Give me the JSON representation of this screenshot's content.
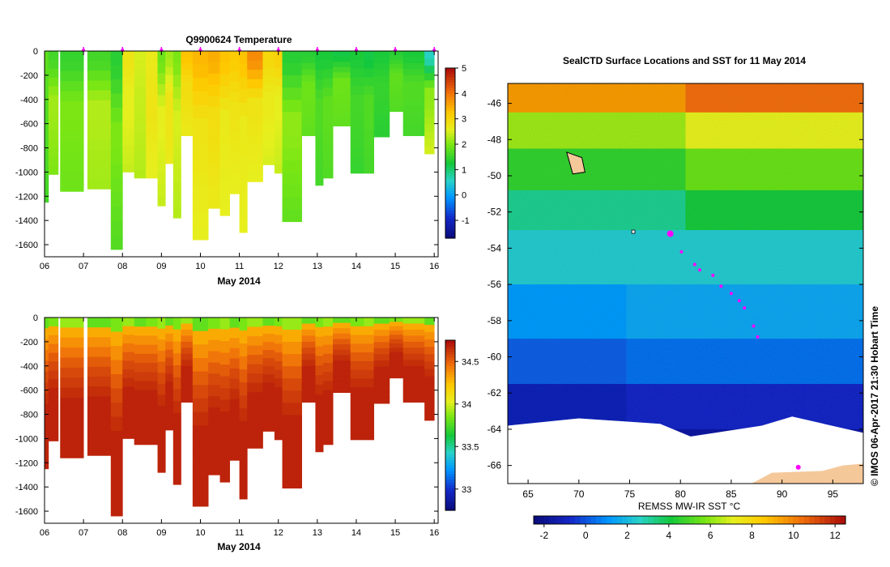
{
  "chart_data": [
    {
      "type": "heatmap",
      "panel": "temperature-section",
      "title": "Q9900624  Temperature",
      "xlabel": "May 2014",
      "ylabel": "",
      "x_ticks": [
        "06",
        "07",
        "08",
        "09",
        "10",
        "11",
        "12",
        "13",
        "14",
        "15",
        "16"
      ],
      "y_ticks": [
        "0",
        "-200",
        "-400",
        "-600",
        "-800",
        "-1000",
        "-1200",
        "-1400",
        "-1600"
      ],
      "xlim": [
        6.0,
        16.1
      ],
      "ylim": [
        -1700,
        0
      ],
      "colorbar": {
        "min": -1.7,
        "max": 5.0,
        "ticks": [
          "-1",
          "0",
          "1",
          "2",
          "3",
          "4",
          "5"
        ]
      },
      "profile_marker_days": [
        7.0,
        8.0,
        9.0,
        10.0,
        11.0,
        12.0,
        13.0,
        14.0,
        15.0,
        16.0
      ],
      "profiles": [
        {
          "day": 6.0,
          "width": 0.1,
          "depth": 1250,
          "surf": 1.8,
          "mid": 1.7,
          "deep": 1.6
        },
        {
          "day": 6.1,
          "width": 0.25,
          "depth": 1020,
          "surf": 1.6,
          "mid": 2.2,
          "deep": 2.0
        },
        {
          "day": 6.4,
          "width": 0.6,
          "depth": 1160,
          "surf": 1.5,
          "mid": 2.0,
          "deep": 1.9
        },
        {
          "day": 7.1,
          "width": 0.65,
          "depth": 1140,
          "surf": 1.6,
          "mid": 2.3,
          "deep": 2.2
        },
        {
          "day": 7.7,
          "width": 0.3,
          "depth": 1640,
          "surf": 1.4,
          "mid": 2.0,
          "deep": 1.7
        },
        {
          "day": 8.0,
          "width": 0.3,
          "depth": 1000,
          "surf": 2.8,
          "mid": 2.6,
          "deep": 2.4
        },
        {
          "day": 8.3,
          "width": 0.3,
          "depth": 1050,
          "surf": 2.5,
          "mid": 2.4,
          "deep": 2.3
        },
        {
          "day": 8.6,
          "width": 0.3,
          "depth": 1050,
          "surf": 2.7,
          "mid": 2.8,
          "deep": 2.6
        },
        {
          "day": 8.9,
          "width": 0.2,
          "depth": 1280,
          "surf": 1.9,
          "mid": 2.6,
          "deep": 2.4
        },
        {
          "day": 9.1,
          "width": 0.25,
          "depth": 930,
          "surf": 2.2,
          "mid": 2.8,
          "deep": 2.7
        },
        {
          "day": 9.3,
          "width": 0.2,
          "depth": 1380,
          "surf": 2.0,
          "mid": 2.5,
          "deep": 2.3
        },
        {
          "day": 9.5,
          "width": 0.3,
          "depth": 700,
          "surf": 3.3,
          "mid": 2.9,
          "deep": 2.7
        },
        {
          "day": 9.8,
          "width": 0.4,
          "depth": 1560,
          "surf": 3.4,
          "mid": 2.8,
          "deep": 2.6
        },
        {
          "day": 10.2,
          "width": 0.3,
          "depth": 1300,
          "surf": 3.5,
          "mid": 2.9,
          "deep": 2.7
        },
        {
          "day": 10.5,
          "width": 0.25,
          "depth": 1360,
          "surf": 3.3,
          "mid": 2.7,
          "deep": 2.6
        },
        {
          "day": 10.75,
          "width": 0.25,
          "depth": 1180,
          "surf": 3.2,
          "mid": 2.8,
          "deep": 2.6
        },
        {
          "day": 11.0,
          "width": 0.2,
          "depth": 1500,
          "surf": 3.3,
          "mid": 2.7,
          "deep": 2.6
        },
        {
          "day": 11.2,
          "width": 0.4,
          "depth": 1080,
          "surf": 3.8,
          "mid": 2.8,
          "deep": 2.6
        },
        {
          "day": 11.6,
          "width": 0.3,
          "depth": 940,
          "surf": 3.0,
          "mid": 2.7,
          "deep": 2.5
        },
        {
          "day": 11.9,
          "width": 0.2,
          "depth": 1010,
          "surf": 3.1,
          "mid": 2.6,
          "deep": 2.4
        },
        {
          "day": 12.1,
          "width": 0.5,
          "depth": 1410,
          "surf": 1.4,
          "mid": 2.1,
          "deep": 1.8
        },
        {
          "day": 12.6,
          "width": 0.35,
          "depth": 700,
          "surf": 1.4,
          "mid": 1.9,
          "deep": 1.8
        },
        {
          "day": 12.95,
          "width": 0.2,
          "depth": 1110,
          "surf": 1.3,
          "mid": 1.7,
          "deep": 1.6
        },
        {
          "day": 13.15,
          "width": 0.25,
          "depth": 1050,
          "surf": 1.3,
          "mid": 1.8,
          "deep": 1.7
        },
        {
          "day": 13.4,
          "width": 0.45,
          "depth": 620,
          "surf": 1.2,
          "mid": 1.9,
          "deep": 1.8
        },
        {
          "day": 13.85,
          "width": 0.35,
          "depth": 1010,
          "surf": 1.3,
          "mid": 1.6,
          "deep": 1.5
        },
        {
          "day": 14.2,
          "width": 0.25,
          "depth": 1010,
          "surf": 1.2,
          "mid": 1.7,
          "deep": 1.6
        },
        {
          "day": 14.45,
          "width": 0.4,
          "depth": 710,
          "surf": 1.3,
          "mid": 1.5,
          "deep": 1.4
        },
        {
          "day": 14.85,
          "width": 0.35,
          "depth": 500,
          "surf": 1.4,
          "mid": 1.8,
          "deep": 1.7
        },
        {
          "day": 15.2,
          "width": 0.55,
          "depth": 700,
          "surf": 1.3,
          "mid": 1.7,
          "deep": 1.6
        },
        {
          "day": 15.75,
          "width": 0.25,
          "depth": 850,
          "surf": 0.6,
          "mid": 2.1,
          "deep": 2.5
        }
      ]
    },
    {
      "type": "heatmap",
      "panel": "salinity-section",
      "title": "",
      "xlabel": "May 2014",
      "ylabel": "",
      "x_ticks": [
        "06",
        "07",
        "08",
        "09",
        "10",
        "11",
        "12",
        "13",
        "14",
        "15",
        "16"
      ],
      "y_ticks": [
        "0",
        "-200",
        "-400",
        "-600",
        "-800",
        "-1000",
        "-1200",
        "-1400",
        "-1600"
      ],
      "xlim": [
        6.0,
        16.1
      ],
      "ylim": [
        -1700,
        0
      ],
      "colorbar": {
        "min": 32.75,
        "max": 34.75,
        "ticks": [
          "33",
          "33.5",
          "34",
          "34.5"
        ]
      },
      "surface_value": 33.85,
      "deep_value": 34.68
    },
    {
      "type": "heatmap",
      "panel": "sst-map",
      "title": "SealCTD Surface Locations and SST for 11 May 2014",
      "xlabel": "REMSS MW-IR SST °C",
      "ylabel": "",
      "x_ticks": [
        "65",
        "70",
        "75",
        "80",
        "85",
        "90",
        "95"
      ],
      "y_ticks": [
        "-46",
        "-48",
        "-50",
        "-52",
        "-54",
        "-56",
        "-58",
        "-60",
        "-62",
        "-64",
        "-66"
      ],
      "xlim": [
        63,
        98
      ],
      "ylim": [
        -67,
        -44.9
      ],
      "colorbar": {
        "min": -2.5,
        "max": 12.5,
        "ticks": [
          "-2",
          "0",
          "2",
          "4",
          "6",
          "8",
          "10",
          "12"
        ]
      },
      "track": [
        {
          "lon": 79.0,
          "lat": -53.2,
          "current": true
        },
        {
          "lon": 80.1,
          "lat": -54.2
        },
        {
          "lon": 81.4,
          "lat": -54.9
        },
        {
          "lon": 81.9,
          "lat": -55.2
        },
        {
          "lon": 83.2,
          "lat": -55.5
        },
        {
          "lon": 84.0,
          "lat": -56.1
        },
        {
          "lon": 85.0,
          "lat": -56.5
        },
        {
          "lon": 85.8,
          "lat": -56.9
        },
        {
          "lon": 86.3,
          "lat": -57.3
        },
        {
          "lon": 87.2,
          "lat": -58.3
        },
        {
          "lon": 87.6,
          "lat": -58.9
        }
      ],
      "deployment_site": {
        "lon": 91.6,
        "lat": -66.1
      }
    }
  ],
  "credit": "© IMOS 06-Apr-2017 21:30 Hobart Time"
}
